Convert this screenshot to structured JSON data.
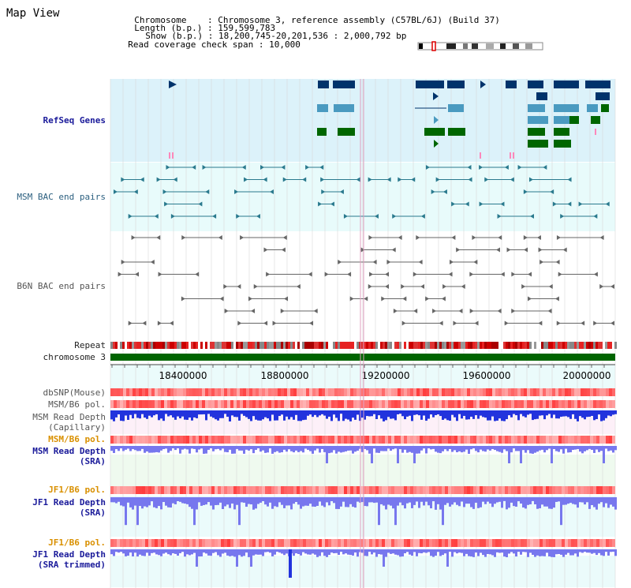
{
  "app": {
    "title": "Map View"
  },
  "header": {
    "chromosome_key": "Chromosome",
    "chromosome_val": "Chromosome 3, reference assembly (C57BL/6J) (Build 37)",
    "length_key": "Length (b.p.)",
    "length_val": "159,599,783",
    "show_key": "Show (b.p.)",
    "show_val": "18,200,745-20,201,536 : 2,000,792 bp",
    "coverage_key": "Read coverage check span",
    "coverage_val": "10,000"
  },
  "tracks": {
    "refseq": "RefSeq Genes",
    "msm_bac": "MSM BAC end pairs",
    "b6n_bac": "B6N BAC end pairs",
    "repeat": "Repeat",
    "chromosome": "chromosome 3",
    "dbsnp": "dbSNP(Mouse)",
    "msm_b6_pol_1": "MSM/B6 pol.",
    "msm_read_depth_cap_1": "MSM Read Depth",
    "msm_read_depth_cap_2": "(Capillary)",
    "msm_b6_pol_2": "MSM/B6 pol.",
    "msm_read_depth_sra_1": "MSM Read Depth",
    "msm_read_depth_sra_2": "(SRA)",
    "jf1_b6_pol_1": "JF1/B6 pol.",
    "jf1_read_depth_1": "JF1 Read Depth",
    "jf1_read_depth_2": "(SRA)",
    "jf1_b6_pol_2": "JF1/B6 pol.",
    "jf1_read_depth_trim_1": "JF1 Read Depth",
    "jf1_read_depth_trim_2": "(SRA trimmed)"
  },
  "axis": {
    "ticks": [
      "18400000",
      "18800000",
      "19200000",
      "19600000",
      "20000000"
    ]
  },
  "colors": {
    "refseq_bg": "#dcf2fa",
    "bac_bg": "#e8fbfb",
    "gene_navy": "#00336b",
    "gene_light": "#4a9ac0",
    "gene_green": "#006600",
    "msm_feature": "#2a7a8e",
    "b6n_feature": "#666666",
    "chromosome_bar": "#006400",
    "depth_blue": "#2233dd",
    "depth_sra": "#7777ee"
  }
}
